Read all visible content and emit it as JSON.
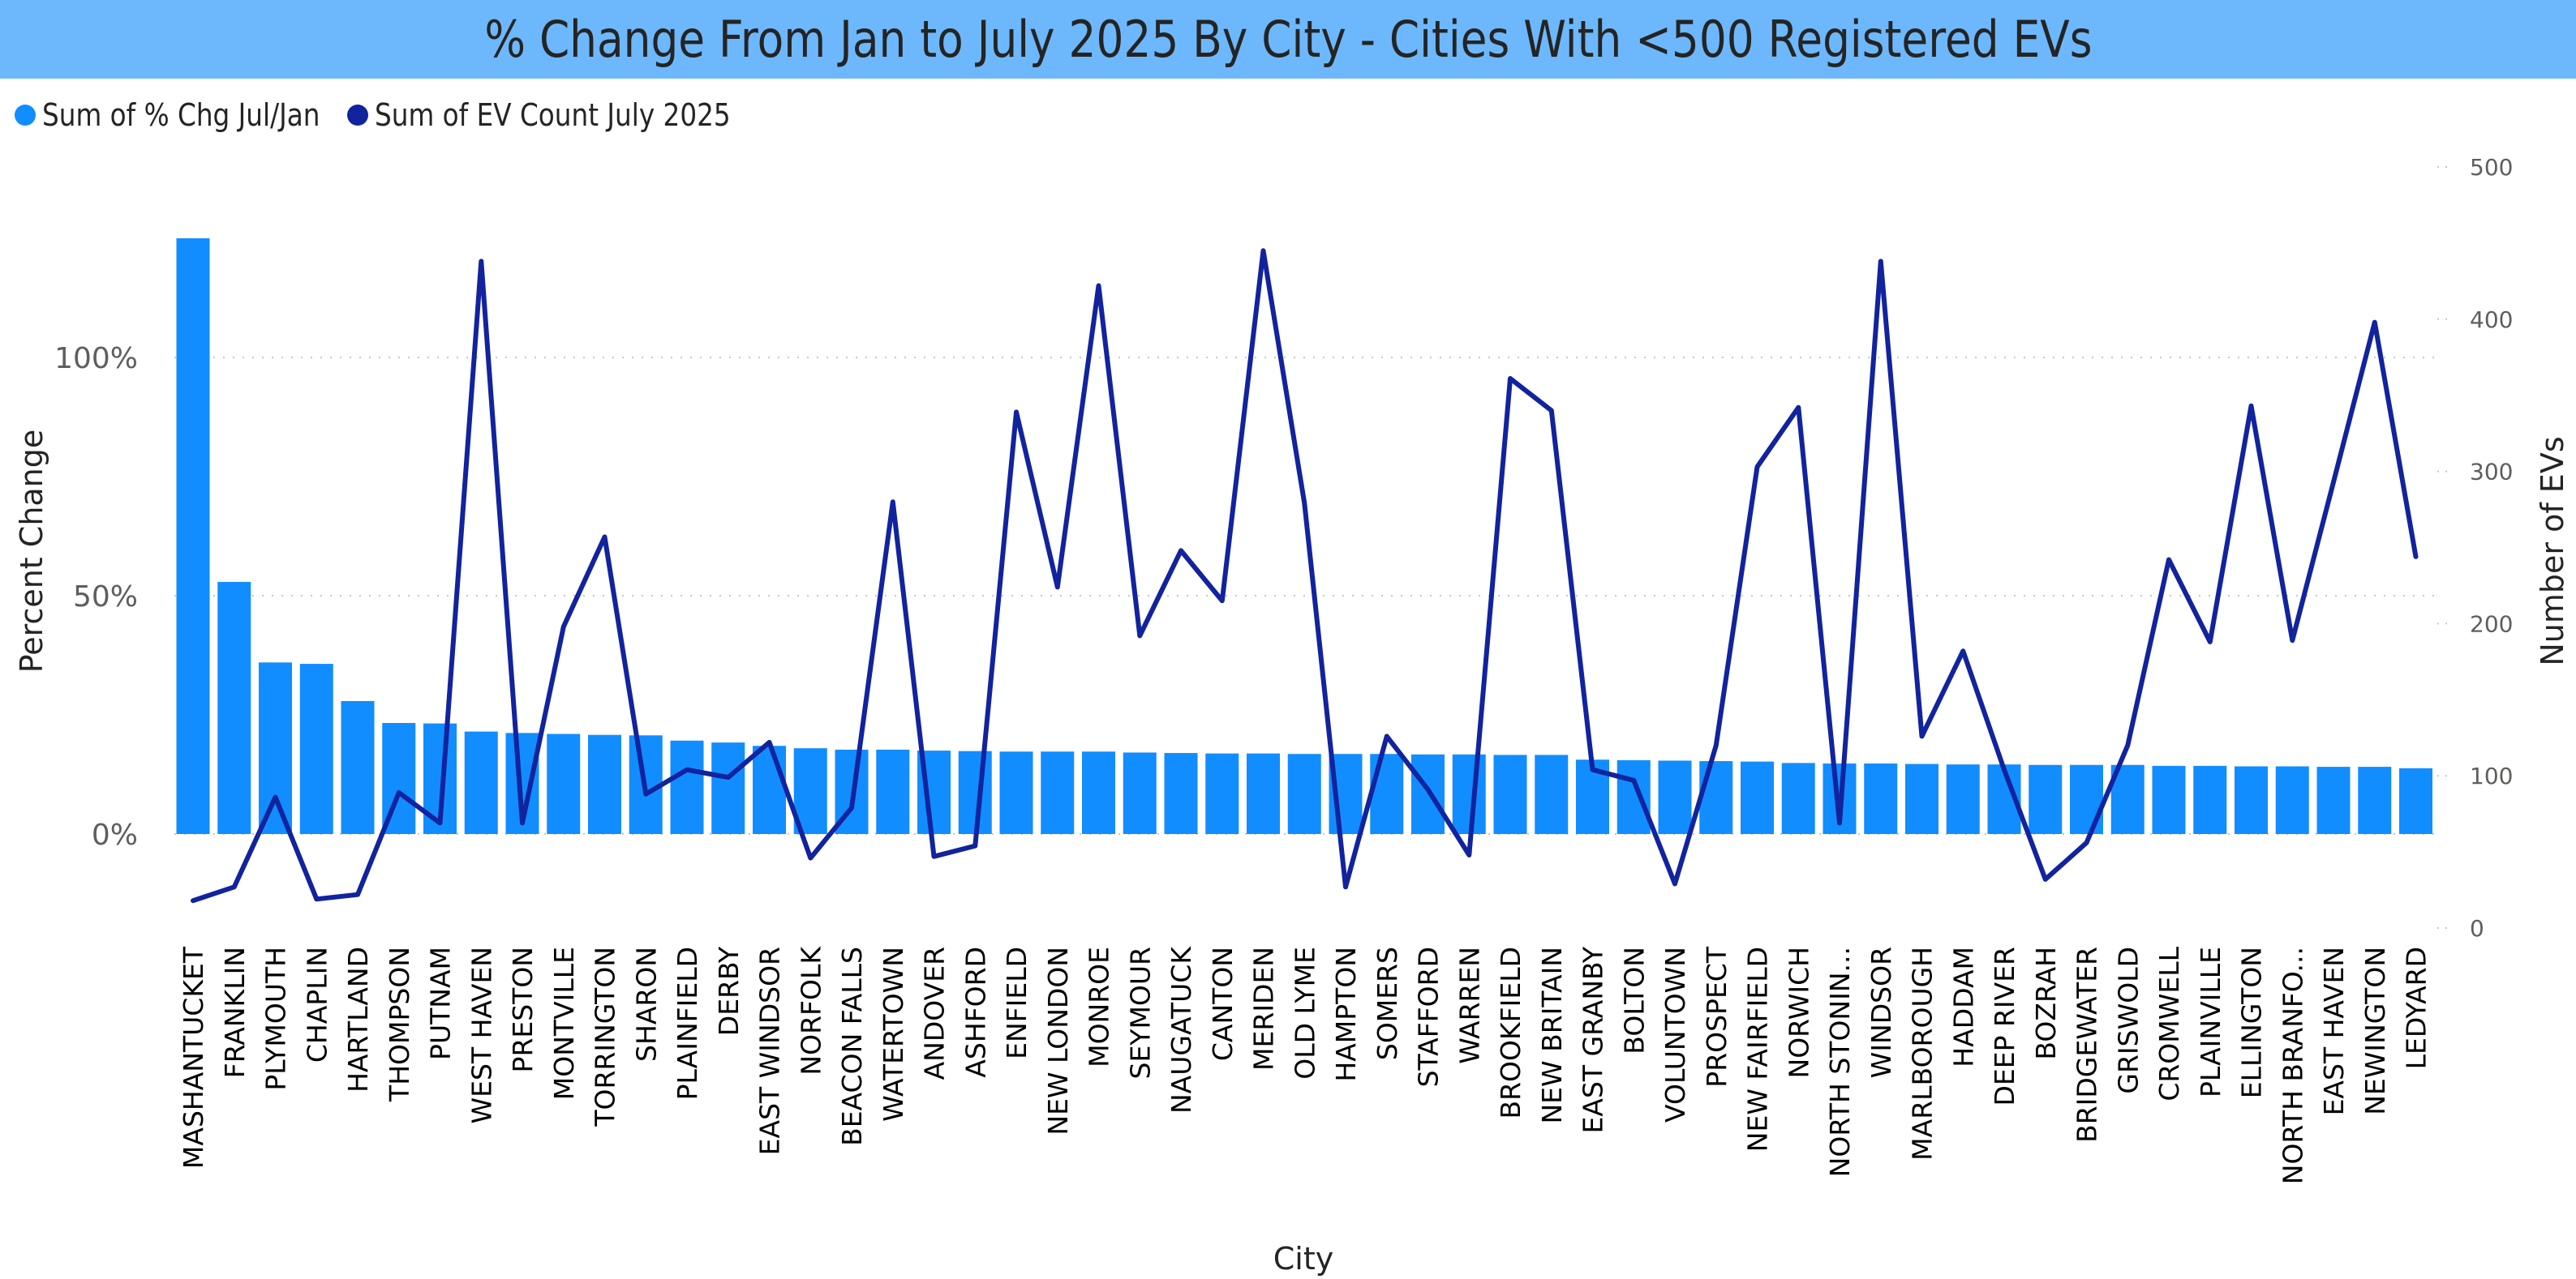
{
  "title": "% Change From Jan to July 2025 By City - Cities With <500 Registered EVs",
  "legend": [
    {
      "label": "Sum of % Chg Jul/Jan",
      "color": "#118DFF"
    },
    {
      "label": "Sum of EV Count July 2025",
      "color": "#12239E"
    }
  ],
  "axes": {
    "x_title": "City",
    "y_left_title": "Percent Change",
    "y_right_title": "Number of EVs",
    "y_left_ticks": [
      "0%",
      "50%",
      "100%"
    ],
    "y_right_ticks": [
      "0",
      "100",
      "200",
      "300",
      "400",
      "500"
    ]
  },
  "colors": {
    "title_band": "#6DB8FD",
    "bar": "#118DFF",
    "line": "#12239E",
    "gridline": "#C8C6C4"
  },
  "chart_data": {
    "type": "bar",
    "combo": "bar + line (dual axis)",
    "title": "% Change From Jan to July 2025 By City - Cities With <500 Registered EVs",
    "xlabel": "City",
    "ylabel": "Percent Change",
    "ylabel_right": "Number of EVs",
    "ylim": [
      0,
      125
    ],
    "ylim_right": [
      0,
      500
    ],
    "grid": true,
    "legend_position": "top-left",
    "categories": [
      "MASHANTUCKET",
      "FRANKLIN",
      "PLYMOUTH",
      "CHAPLIN",
      "HARTLAND",
      "THOMPSON",
      "PUTNAM",
      "WEST HAVEN",
      "PRESTON",
      "MONTVILLE",
      "TORRINGTON",
      "SHARON",
      "PLAINFIELD",
      "DERBY",
      "EAST WINDSOR",
      "NORFOLK",
      "BEACON FALLS",
      "WATERTOWN",
      "ANDOVER",
      "ASHFORD",
      "ENFIELD",
      "NEW LONDON",
      "MONROE",
      "SEYMOUR",
      "NAUGATUCK",
      "CANTON",
      "MERIDEN",
      "OLD LYME",
      "HAMPTON",
      "SOMERS",
      "STAFFORD",
      "WARREN",
      "BROOKFIELD",
      "NEW BRITAIN",
      "EAST GRANBY",
      "BOLTON",
      "VOLUNTOWN",
      "PROSPECT",
      "NEW FAIRFIELD",
      "NORWICH",
      "NORTH STONIN...",
      "WINDSOR",
      "MARLBOROUGH",
      "HADDAM",
      "DEEP RIVER",
      "BOZRAH",
      "BRIDGEWATER",
      "GRISWOLD",
      "CROMWELL",
      "PLAINVILLE",
      "ELLINGTON",
      "NORTH BRANFO...",
      "EAST HAVEN",
      "NEWINGTON",
      "LEDYARD"
    ],
    "series": [
      {
        "name": "Sum of % Chg Jul/Jan",
        "type": "bar",
        "axis": "left",
        "unit": "%",
        "values": [
          125.0,
          52.9,
          36.0,
          35.7,
          27.9,
          23.3,
          23.2,
          21.5,
          21.2,
          21.0,
          20.8,
          20.7,
          19.6,
          19.2,
          18.5,
          18.0,
          17.7,
          17.7,
          17.5,
          17.4,
          17.3,
          17.3,
          17.3,
          17.1,
          17.0,
          16.9,
          16.9,
          16.8,
          16.8,
          16.8,
          16.7,
          16.7,
          16.6,
          16.6,
          15.6,
          15.5,
          15.4,
          15.3,
          15.2,
          14.9,
          14.8,
          14.8,
          14.7,
          14.6,
          14.6,
          14.5,
          14.5,
          14.5,
          14.3,
          14.3,
          14.2,
          14.2,
          14.1,
          14.1,
          13.8
        ]
      },
      {
        "name": "Sum of EV Count July 2025",
        "type": "line",
        "axis": "right",
        "values": [
          18,
          27,
          86,
          19,
          22,
          89,
          69,
          438,
          69,
          198,
          257,
          88,
          104,
          99,
          122,
          46,
          79,
          280,
          47,
          54,
          339,
          224,
          422,
          192,
          248,
          215,
          445,
          279,
          27,
          126,
          91,
          48,
          361,
          340,
          104,
          97,
          29,
          120,
          303,
          342,
          69,
          438,
          126,
          182,
          104,
          32,
          56,
          120,
          242,
          188,
          343,
          189,
          293,
          398,
          244
        ]
      }
    ]
  }
}
